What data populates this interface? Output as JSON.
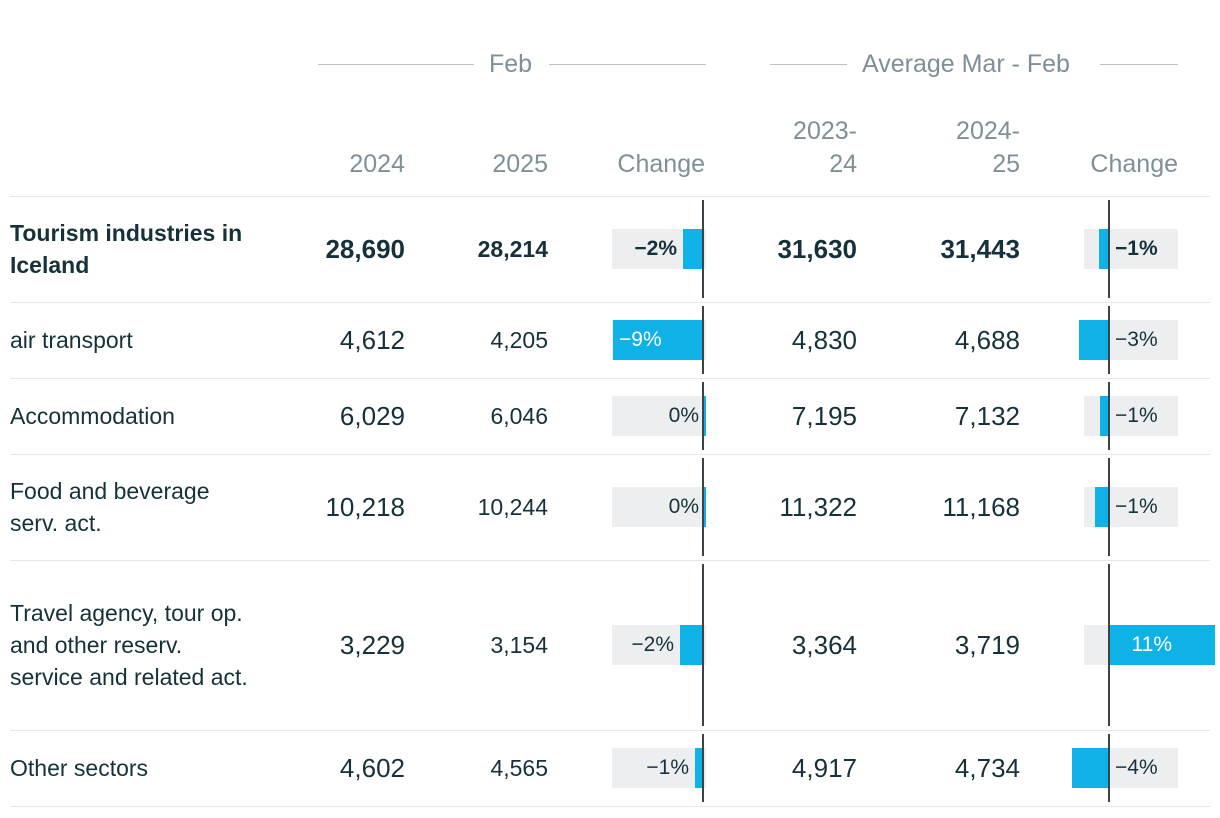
{
  "header": {
    "group1": "Feb",
    "group2": "Average Mar - Feb",
    "columns": [
      "2024",
      "2025",
      "Change",
      "2023-\n24",
      "2024-\n25",
      "Change"
    ]
  },
  "colors": {
    "bar": "#0eb2e6",
    "bar_bg": "#eceeef",
    "text": "#16313a",
    "muted": "#7f8f97"
  },
  "chart_data": {
    "type": "table",
    "groups": [
      "Feb",
      "Average Mar - Feb"
    ],
    "columns": [
      "2024",
      "2025",
      "Change",
      "2023-24",
      "2024-25",
      "Change"
    ],
    "rows": [
      {
        "label": "Tourism industries in Iceland",
        "bold": true,
        "feb_2024": "28,690",
        "feb_2025": "28,214",
        "feb_change": "−2%",
        "feb_change_value": -2,
        "avg_2023_24": "31,630",
        "avg_2024_25": "31,443",
        "avg_change": "−1%",
        "avg_change_value": -1
      },
      {
        "label": "air transport",
        "bold": false,
        "feb_2024": "4,612",
        "feb_2025": "4,205",
        "feb_change": "−9%",
        "feb_change_value": -9,
        "avg_2023_24": "4,830",
        "avg_2024_25": "4,688",
        "avg_change": "−3%",
        "avg_change_value": -3
      },
      {
        "label": "Accommodation",
        "bold": false,
        "feb_2024": "6,029",
        "feb_2025": "6,046",
        "feb_change": "0%",
        "feb_change_value": 0.3,
        "avg_2023_24": "7,195",
        "avg_2024_25": "7,132",
        "avg_change": "−1%",
        "avg_change_value": -0.9
      },
      {
        "label": "Food and beverage serv. act.",
        "bold": false,
        "feb_2024": "10,218",
        "feb_2025": "10,244",
        "feb_change": "0%",
        "feb_change_value": 0.3,
        "avg_2023_24": "11,322",
        "avg_2024_25": "11,168",
        "avg_change": "−1%",
        "avg_change_value": -1.4
      },
      {
        "label": "Travel agency, tour op. and other reserv. service and related act.",
        "bold": false,
        "feb_2024": "3,229",
        "feb_2025": "3,154",
        "feb_change": "−2%",
        "feb_change_value": -2.3,
        "avg_2023_24": "3,364",
        "avg_2024_25": "3,719",
        "avg_change": "11%",
        "avg_change_value": 10.6
      },
      {
        "label": "Other sectors",
        "bold": false,
        "feb_2024": "4,602",
        "feb_2025": "4,565",
        "feb_change": "−1%",
        "feb_change_value": -0.8,
        "avg_2023_24": "4,917",
        "avg_2024_25": "4,734",
        "avg_change": "−4%",
        "avg_change_value": -3.7
      }
    ]
  }
}
